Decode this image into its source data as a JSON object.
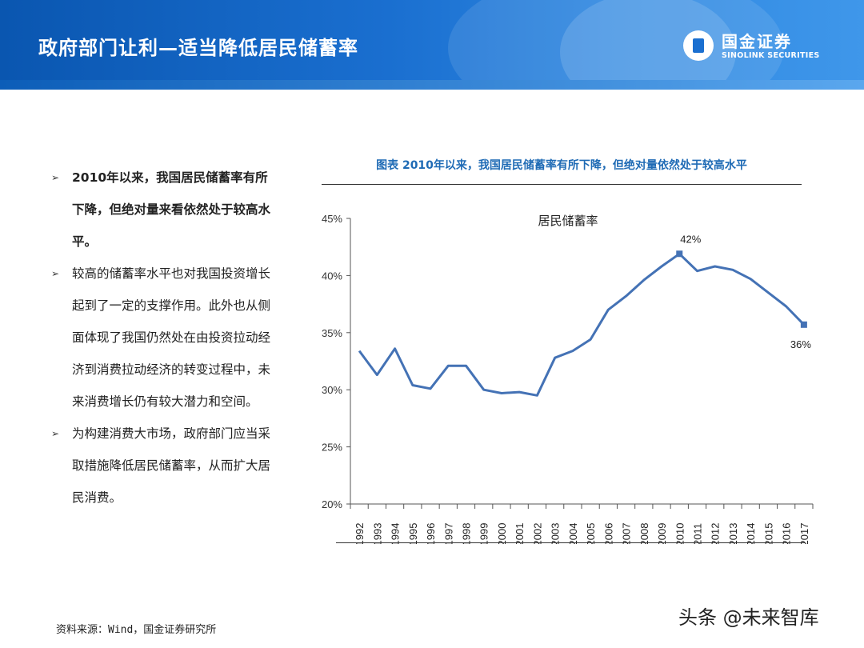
{
  "header": {
    "title": "政府部门让利—适当降低居民储蓄率",
    "logo_cn": "国金证券",
    "logo_en": "SINOLINK SECURITIES"
  },
  "bullets": [
    {
      "text": "2010年以来，我国居民储蓄率有所下降，但绝对量来看依然处于较高水平。",
      "bold": true
    },
    {
      "text": "较高的储蓄率水平也对我国投资增长起到了一定的支撑作用。此外也从侧面体现了我国仍然处在由投资拉动经济到消费拉动经济的转变过程中，未来消费增长仍有较大潜力和空间。",
      "bold": false
    },
    {
      "text": "为构建消费大市场，政府部门应当采取措施降低居民储蓄率，从而扩大居民消费。",
      "bold": false
    }
  ],
  "bullet_marker": "➢",
  "chart_caption": "图表  2010年以来，我国居民储蓄率有所下降，但绝对量依然处于较高水平",
  "chart_data": {
    "type": "line",
    "title": "居民储蓄率",
    "x": [
      "1992",
      "1993",
      "1994",
      "1995",
      "1996",
      "1997",
      "1998",
      "1999",
      "2000",
      "2001",
      "2002",
      "2003",
      "2004",
      "2005",
      "2006",
      "2007",
      "2008",
      "2009",
      "2010",
      "2011",
      "2012",
      "2013",
      "2014",
      "2015",
      "2016",
      "2017"
    ],
    "series": [
      {
        "name": "居民储蓄率",
        "values": [
          33.4,
          31.3,
          33.6,
          30.4,
          30.1,
          32.1,
          32.1,
          30.0,
          29.7,
          29.8,
          29.5,
          32.8,
          33.4,
          34.4,
          37.0,
          38.2,
          39.6,
          40.8,
          41.9,
          40.4,
          40.8,
          40.5,
          39.7,
          38.5,
          37.3,
          35.7
        ]
      }
    ],
    "ylim": [
      20,
      45
    ],
    "yticks": [
      "20%",
      "25%",
      "30%",
      "35%",
      "40%",
      "45%"
    ],
    "data_labels": [
      {
        "x": "2010",
        "text": "42%"
      },
      {
        "x": "2017",
        "text": "36%"
      }
    ],
    "color": "#4472b5",
    "grid": false
  },
  "source": "资料来源：Wind，国金证券研究所",
  "watermark": "头条 @未来智库"
}
